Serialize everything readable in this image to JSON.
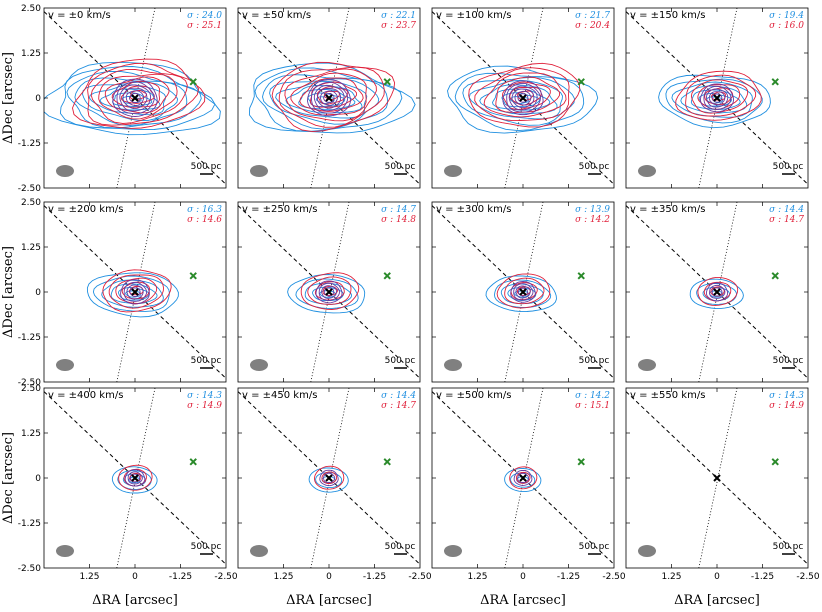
{
  "figure": {
    "ylabel": "ΔDec [arcsec]",
    "xlabel": "ΔRA [arcsec]",
    "scalebar_label": "500 pc",
    "colors": {
      "blue": "#1f8fe0",
      "red": "#e0203a",
      "purple": "#6a3aa0",
      "green": "#2a8a2a",
      "beam": "#808080"
    }
  },
  "chart_data": {
    "type": "contour-panel-grid",
    "xlim": [
      2.5,
      -2.5
    ],
    "ylim": [
      -2.5,
      2.5
    ],
    "xticks": [
      "1.25",
      "0",
      "-1.25",
      "-2.50"
    ],
    "yticks": [
      "2.50",
      "1.25",
      "0",
      "-1.25",
      "-2.50"
    ],
    "markers": {
      "nucleus": {
        "x": 0,
        "y": 0
      },
      "green_cross": {
        "x": -1.6,
        "y": 0.45
      }
    },
    "panels": [
      {
        "v_label": "v = ±0 km/s",
        "sigma_blue": "σ : 24.0",
        "sigma_red": "σ : 25.1",
        "extent": 1.0
      },
      {
        "v_label": "v = ±50 km/s",
        "sigma_blue": "σ : 22.1",
        "sigma_red": "σ : 23.7",
        "extent": 0.95
      },
      {
        "v_label": "v = ±100 km/s",
        "sigma_blue": "σ : 21.7",
        "sigma_red": "σ : 20.4",
        "extent": 0.85
      },
      {
        "v_label": "v = ±150 km/s",
        "sigma_blue": "σ : 19.4",
        "sigma_red": "σ : 16.0",
        "extent": 0.6
      },
      {
        "v_label": "v = ±200 km/s",
        "sigma_blue": "σ : 16.3",
        "sigma_red": "σ : 14.6",
        "extent": 0.45
      },
      {
        "v_label": "v = ±250 km/s",
        "sigma_blue": "σ : 14.7",
        "sigma_red": "σ : 14.8",
        "extent": 0.35
      },
      {
        "v_label": "v = ±300 km/s",
        "sigma_blue": "σ : 13.9",
        "sigma_red": "σ : 14.2",
        "extent": 0.3
      },
      {
        "v_label": "v = ±350 km/s",
        "sigma_blue": "σ : 14.4",
        "sigma_red": "σ : 14.7",
        "extent": 0.18
      },
      {
        "v_label": "v = ±400 km/s",
        "sigma_blue": "σ : 14.3",
        "sigma_red": "σ : 14.9",
        "extent": 0.12
      },
      {
        "v_label": "v = ±450 km/s",
        "sigma_blue": "σ : 14.4",
        "sigma_red": "σ : 14.7",
        "extent": 0.08
      },
      {
        "v_label": "v = ±500 km/s",
        "sigma_blue": "σ : 14.2",
        "sigma_red": "σ : 15.1",
        "extent": 0.06
      },
      {
        "v_label": "v = ±550 km/s",
        "sigma_blue": "σ : 14.3",
        "sigma_red": "σ : 14.9",
        "extent": 0.0
      }
    ]
  }
}
